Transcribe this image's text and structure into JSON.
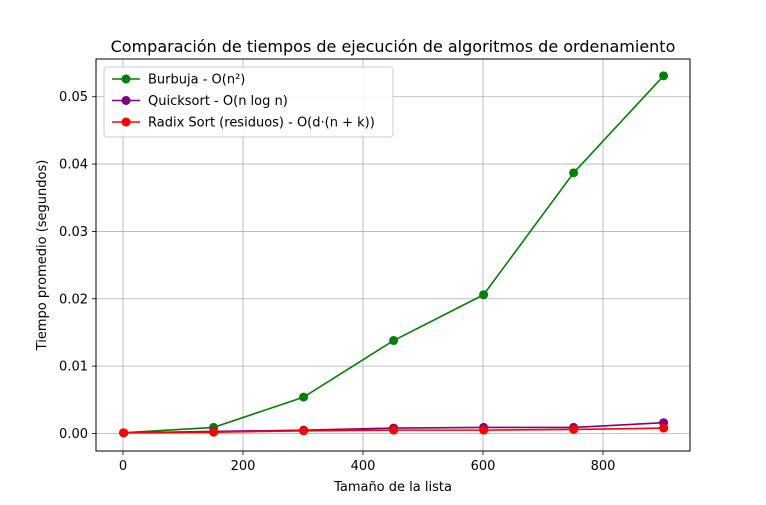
{
  "chart_data": {
    "type": "line",
    "title": "Comparación de tiempos de ejecución de algoritmos de ordenamiento",
    "xlabel": "Tamaño de la lista",
    "ylabel": "Tiempo promedio (segundos)",
    "xlim": [
      -45,
      945
    ],
    "ylim": [
      -0.0026,
      0.0556
    ],
    "xticks": [
      0,
      200,
      400,
      600,
      800
    ],
    "xtick_labels": [
      "0",
      "200",
      "400",
      "600",
      "800"
    ],
    "yticks": [
      0.0,
      0.01,
      0.02,
      0.03,
      0.04,
      0.05
    ],
    "ytick_labels": [
      "0.00",
      "0.01",
      "0.02",
      "0.03",
      "0.04",
      "0.05"
    ],
    "grid": true,
    "legend_position": "top-left",
    "x": [
      1,
      151,
      301,
      451,
      601,
      751,
      901
    ],
    "series": [
      {
        "name": "Burbuja - O(n²)",
        "color": "#008000",
        "values": [
          0.0001,
          0.0009,
          0.0054,
          0.0138,
          0.0206,
          0.0387,
          0.0531
        ]
      },
      {
        "name": "Quicksort - O(n log n)",
        "color": "#800080",
        "values": [
          0.0001,
          0.0003,
          0.0005,
          0.0008,
          0.0009,
          0.0009,
          0.0016
        ]
      },
      {
        "name": "Radix Sort (residuos) - O(d·(n + k))",
        "color": "#ff0000",
        "values": [
          0.0001,
          0.0002,
          0.0004,
          0.0005,
          0.0005,
          0.0006,
          0.0008
        ]
      }
    ]
  }
}
